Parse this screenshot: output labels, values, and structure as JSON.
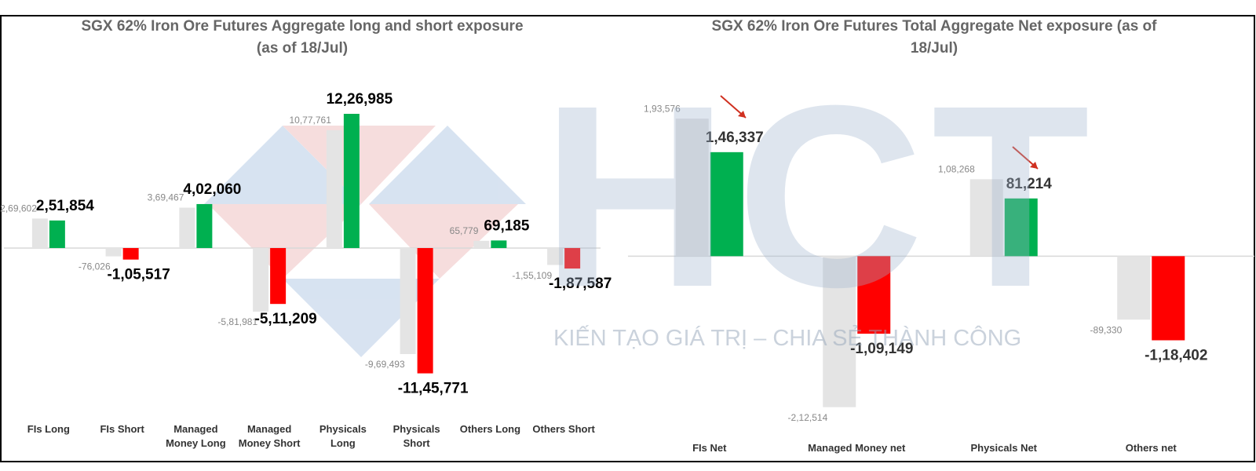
{
  "chart_data": [
    {
      "type": "bar",
      "title": "SGX 62% Iron Ore Futures Aggregate long and short exposure (as of 18/Jul)",
      "categories": [
        "FIs Long",
        "FIs Short",
        "Managed Money Long",
        "Managed Money Short",
        "Physicals Long",
        "Physicals Short",
        "Others Long",
        "Others Short"
      ],
      "series": [
        {
          "color": "#e4e4e4",
          "values": [
            269602,
            -76026,
            369467,
            -581981,
            1077761,
            -969493,
            65779,
            -155109
          ],
          "value_labels": [
            "2,69,602",
            "-76,026",
            "3,69,467",
            "-5,81,981",
            "10,77,761",
            "-9,69,493",
            "65,779",
            "-1,55,109"
          ]
        },
        {
          "color": "#00b050",
          "negative_color": "#ff0000",
          "values": [
            251854,
            -105517,
            402060,
            -511209,
            1226985,
            -1145771,
            69185,
            -187587
          ],
          "value_labels": [
            "2,51,854",
            "-1,05,517",
            "4,02,060",
            "-5,11,209",
            "12,26,985",
            "-11,45,771",
            "69,185",
            "-1,87,587"
          ]
        }
      ],
      "ylim": [
        -1450000,
        1550000
      ]
    },
    {
      "type": "bar",
      "title": "SGX 62% Iron Ore Futures Total Aggregate Net exposure (as of 18/Jul)",
      "categories": [
        "FIs Net",
        "Managed Money net",
        "Physicals Net",
        "Others net"
      ],
      "series": [
        {
          "color": "#e4e4e4",
          "values": [
            193576,
            -212514,
            108268,
            -89330
          ],
          "value_labels": [
            "1,93,576",
            "-2,12,514",
            "1,08,268",
            "-89,330"
          ]
        },
        {
          "color": "#00b050",
          "negative_color": "#ff0000",
          "values": [
            146337,
            -109149,
            81214,
            -118402
          ],
          "value_labels": [
            "1,46,337",
            "-1,09,149",
            "81,214",
            "-1,18,402"
          ]
        }
      ],
      "ylim": [
        -225000,
        250000
      ]
    }
  ],
  "watermark": {
    "logo": "HCT",
    "slogan": "KIẾN TẠO GIÁ TRỊ – CHIA SẺ THÀNH CÔNG"
  }
}
